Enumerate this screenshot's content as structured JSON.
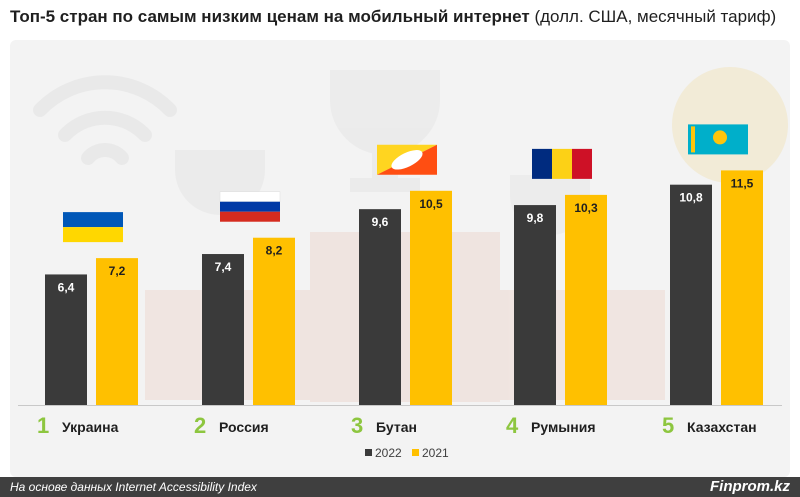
{
  "title": {
    "bold": "Топ-5 стран по самым низким ценам на мобильный интернет",
    "normal": " (долл. США, месячный тариф)"
  },
  "colors": {
    "series_2022": "#3a3a3a",
    "series_2021": "#ffc000",
    "rank": "#8dc63f"
  },
  "chart_data": {
    "type": "bar",
    "title": "Топ-5 стран по самым низким ценам на мобильный интернет (долл. США, месячный тариф)",
    "categories": [
      "Украина",
      "Россия",
      "Бутан",
      "Румыния",
      "Казахстан"
    ],
    "ranks": [
      "1",
      "2",
      "3",
      "4",
      "5"
    ],
    "series": [
      {
        "name": "2022",
        "values": [
          6.4,
          7.4,
          9.6,
          9.8,
          10.8
        ],
        "labels": [
          "6,4",
          "7,4",
          "9,6",
          "9,8",
          "10,8"
        ]
      },
      {
        "name": "2021",
        "values": [
          7.2,
          8.2,
          10.5,
          10.3,
          11.5
        ],
        "labels": [
          "7,2",
          "8,2",
          "10,5",
          "10,3",
          "11,5"
        ]
      }
    ],
    "flags": [
      "ukraine-flag",
      "russia-flag",
      "bhutan-flag",
      "romania-flag",
      "kazakhstan-flag"
    ],
    "ylim": [
      0,
      15
    ],
    "legend_position": "bottom-center",
    "grid": false
  },
  "footer": {
    "source": "На основе данных Internet Accessibility Index",
    "brand": "Finprom.kz"
  }
}
